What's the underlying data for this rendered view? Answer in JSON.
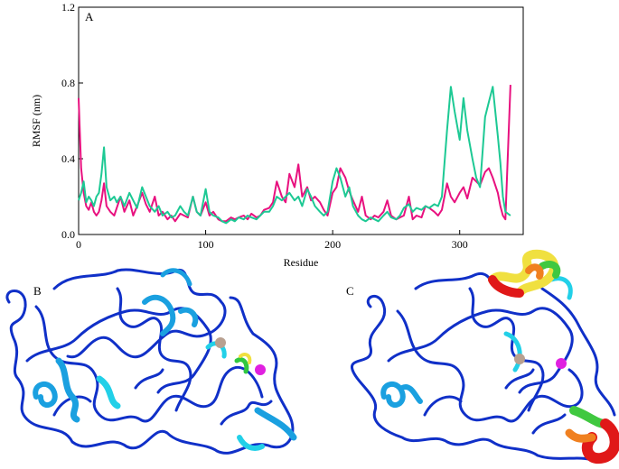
{
  "panels": {
    "a": "A",
    "b": "B",
    "c": "C"
  },
  "chart_data": {
    "type": "line",
    "title": "",
    "xlabel": "Residue",
    "ylabel": "RMSF (nm)",
    "xlim": [
      0,
      350
    ],
    "ylim": [
      0,
      1.2
    ],
    "xticks": [
      0,
      100,
      200,
      300
    ],
    "yticks": [
      0.0,
      0.4,
      0.8,
      1.2
    ],
    "ytick_labels": [
      "0.0",
      "0.4",
      "0.8",
      "1.2"
    ],
    "grid": false,
    "series": [
      {
        "color": "#e8117f",
        "x": [
          0,
          2,
          4,
          6,
          8,
          10,
          12,
          14,
          16,
          18,
          20,
          22,
          25,
          28,
          30,
          33,
          36,
          40,
          43,
          46,
          50,
          53,
          56,
          60,
          63,
          66,
          70,
          73,
          76,
          80,
          83,
          86,
          90,
          93,
          96,
          100,
          103,
          106,
          110,
          113,
          116,
          120,
          123,
          126,
          130,
          133,
          136,
          140,
          143,
          146,
          150,
          153,
          156,
          160,
          163,
          166,
          170,
          173,
          176,
          180,
          183,
          186,
          190,
          193,
          196,
          200,
          203,
          206,
          210,
          213,
          216,
          220,
          223,
          226,
          230,
          233,
          236,
          240,
          243,
          246,
          250,
          253,
          256,
          260,
          263,
          266,
          270,
          273,
          276,
          280,
          283,
          286,
          290,
          293,
          296,
          300,
          303,
          306,
          310,
          313,
          316,
          320,
          323,
          326,
          330,
          332,
          334,
          336,
          340
        ],
        "values": [
          0.72,
          0.35,
          0.22,
          0.15,
          0.13,
          0.17,
          0.12,
          0.1,
          0.12,
          0.18,
          0.27,
          0.15,
          0.12,
          0.1,
          0.14,
          0.2,
          0.12,
          0.18,
          0.1,
          0.15,
          0.22,
          0.16,
          0.12,
          0.2,
          0.1,
          0.12,
          0.08,
          0.1,
          0.07,
          0.11,
          0.1,
          0.09,
          0.2,
          0.12,
          0.1,
          0.17,
          0.1,
          0.12,
          0.08,
          0.07,
          0.07,
          0.09,
          0.08,
          0.09,
          0.1,
          0.08,
          0.11,
          0.09,
          0.1,
          0.13,
          0.14,
          0.17,
          0.28,
          0.2,
          0.17,
          0.32,
          0.25,
          0.37,
          0.2,
          0.25,
          0.18,
          0.2,
          0.17,
          0.13,
          0.1,
          0.22,
          0.25,
          0.35,
          0.3,
          0.23,
          0.18,
          0.12,
          0.2,
          0.1,
          0.08,
          0.1,
          0.09,
          0.12,
          0.18,
          0.1,
          0.08,
          0.09,
          0.1,
          0.2,
          0.08,
          0.1,
          0.09,
          0.15,
          0.14,
          0.12,
          0.1,
          0.13,
          0.27,
          0.2,
          0.17,
          0.22,
          0.25,
          0.19,
          0.3,
          0.28,
          0.26,
          0.33,
          0.35,
          0.3,
          0.22,
          0.15,
          0.1,
          0.08,
          0.79
        ]
      },
      {
        "color": "#1dc994",
        "x": [
          0,
          2,
          4,
          6,
          8,
          10,
          12,
          14,
          16,
          18,
          20,
          22,
          25,
          28,
          30,
          33,
          36,
          40,
          43,
          46,
          50,
          53,
          56,
          60,
          63,
          66,
          70,
          73,
          76,
          80,
          83,
          86,
          90,
          93,
          96,
          100,
          103,
          106,
          110,
          113,
          116,
          120,
          123,
          126,
          130,
          133,
          136,
          140,
          143,
          146,
          150,
          153,
          156,
          160,
          163,
          166,
          170,
          173,
          176,
          180,
          183,
          186,
          190,
          193,
          196,
          200,
          203,
          206,
          210,
          213,
          216,
          220,
          223,
          226,
          230,
          233,
          236,
          240,
          243,
          246,
          250,
          253,
          256,
          260,
          263,
          266,
          270,
          273,
          276,
          280,
          283,
          286,
          290,
          293,
          296,
          300,
          303,
          306,
          310,
          313,
          316,
          320,
          323,
          326,
          330,
          332,
          334,
          336,
          340
        ],
        "values": [
          0.18,
          0.22,
          0.28,
          0.17,
          0.2,
          0.18,
          0.15,
          0.2,
          0.22,
          0.32,
          0.46,
          0.25,
          0.18,
          0.2,
          0.17,
          0.2,
          0.15,
          0.22,
          0.18,
          0.14,
          0.25,
          0.2,
          0.15,
          0.12,
          0.15,
          0.1,
          0.12,
          0.09,
          0.1,
          0.15,
          0.12,
          0.1,
          0.2,
          0.12,
          0.1,
          0.24,
          0.12,
          0.1,
          0.09,
          0.07,
          0.06,
          0.08,
          0.07,
          0.09,
          0.08,
          0.1,
          0.09,
          0.08,
          0.1,
          0.12,
          0.12,
          0.15,
          0.2,
          0.18,
          0.2,
          0.22,
          0.18,
          0.2,
          0.15,
          0.24,
          0.2,
          0.15,
          0.12,
          0.1,
          0.12,
          0.28,
          0.35,
          0.3,
          0.2,
          0.25,
          0.15,
          0.1,
          0.08,
          0.07,
          0.09,
          0.08,
          0.07,
          0.1,
          0.12,
          0.09,
          0.08,
          0.1,
          0.14,
          0.16,
          0.12,
          0.14,
          0.13,
          0.15,
          0.14,
          0.16,
          0.15,
          0.2,
          0.55,
          0.78,
          0.65,
          0.5,
          0.72,
          0.55,
          0.4,
          0.3,
          0.25,
          0.62,
          0.7,
          0.78,
          0.52,
          0.38,
          0.2,
          0.12,
          0.1
        ]
      }
    ]
  },
  "structures": {
    "b": {
      "tube_color": "#1030c8",
      "flex_colors": [
        "#1aa0e0",
        "#22d0e8"
      ],
      "atom_colors": [
        "#b8a090",
        "#e020e0",
        "#30c840",
        "#f0e040"
      ]
    },
    "c": {
      "tube_color": "#1030c8",
      "flex_colors": [
        "#e01818",
        "#f08020",
        "#f0e040",
        "#40c840",
        "#22d0e8"
      ],
      "atom_colors": [
        "#b8a090",
        "#e020e0"
      ]
    }
  }
}
